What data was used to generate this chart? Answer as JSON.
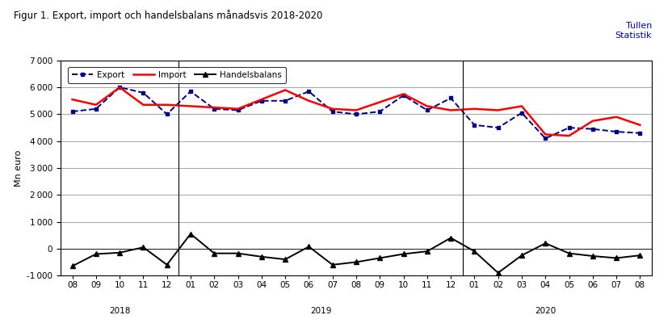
{
  "title": "Figur 1. Export, import och handelsbalans månadsvis 2018-2020",
  "watermark_line1": "Tullen",
  "watermark_line2": "Statistik",
  "ylabel": "Mn euro",
  "ylim": [
    -1000,
    7000
  ],
  "yticks": [
    -1000,
    0,
    1000,
    2000,
    3000,
    4000,
    5000,
    6000,
    7000
  ],
  "x_labels": [
    "08",
    "09",
    "10",
    "11",
    "12",
    "01",
    "02",
    "03",
    "04",
    "05",
    "06",
    "07",
    "08",
    "09",
    "10",
    "11",
    "12",
    "01",
    "02",
    "03",
    "04",
    "05",
    "06",
    "07",
    "08"
  ],
  "year_labels": [
    [
      "2018",
      2.0
    ],
    [
      "2019",
      10.5
    ],
    [
      "2020",
      20.0
    ]
  ],
  "year_separators": [
    4.5,
    16.5
  ],
  "export": [
    5100,
    5200,
    6000,
    5800,
    5000,
    5850,
    5200,
    5150,
    5500,
    5500,
    5850,
    5100,
    5000,
    5100,
    5700,
    5150,
    5600,
    4600,
    4500,
    5050,
    4100,
    4500,
    4450,
    4350,
    4300
  ],
  "import": [
    5550,
    5350,
    6000,
    5350,
    5350,
    5300,
    5250,
    5200,
    5550,
    5900,
    5500,
    5200,
    5150,
    5450,
    5750,
    5300,
    5150,
    5200,
    5150,
    5300,
    4250,
    4200,
    4750,
    4900,
    4600
  ],
  "handelsbalans": [
    -650,
    -200,
    -150,
    50,
    -600,
    550,
    -175,
    -175,
    -300,
    -400,
    75,
    -600,
    -500,
    -350,
    -200,
    -100,
    400,
    -100,
    -900,
    -250,
    200,
    -175,
    -275,
    -350,
    -250
  ],
  "export_color": "#00008B",
  "export_linestyle": "dashed",
  "export_marker": "s",
  "import_color": "#FF0000",
  "import_linestyle": "solid",
  "handelsbalans_color": "#000000",
  "handelsbalans_linestyle": "solid",
  "handelsbalans_marker": "^",
  "legend_labels": [
    "Export",
    "Import",
    "Handelsbalans"
  ],
  "background_color": "#FFFFFF",
  "plot_bg_color": "#FFFFFF",
  "grid_color": "#808080",
  "title_fontsize": 8.5,
  "label_fontsize": 8,
  "tick_fontsize": 7.5,
  "watermark_color": "#0000CD"
}
